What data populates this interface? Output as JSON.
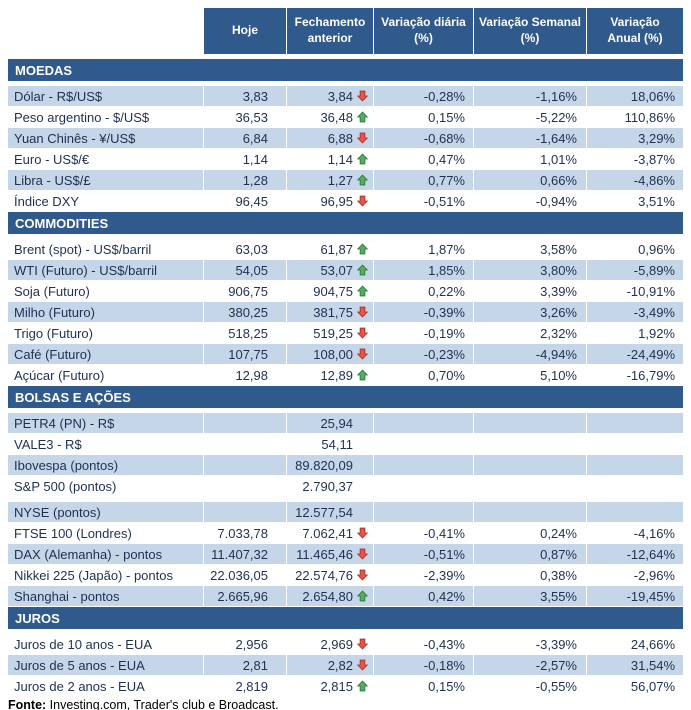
{
  "colors": {
    "header_bg": "#30598c",
    "section_bar_bg": "#30598c",
    "shaded_row_bg": "#c5d6e8",
    "plain_row_bg": "#ffffff",
    "header_text": "#ffffff",
    "body_text": "#1f3050",
    "up_arrow": "#5aab61",
    "down_arrow": "#e2574c"
  },
  "chart_data": {
    "type": "table",
    "columns": [
      "",
      "Hoje",
      "Fechamento anterior",
      "Variação diária (%)",
      "Variação Semanal (%)",
      "Variação Anual (%)"
    ],
    "header_lines": [
      [
        ""
      ],
      [
        "Hoje"
      ],
      [
        "Fechamento",
        "anterior"
      ],
      [
        "Variação diária",
        "(%)"
      ],
      [
        "Variação Semanal",
        "(%)"
      ],
      [
        "Variação",
        "Anual (%)"
      ]
    ],
    "sections": [
      {
        "title": "MOEDAS",
        "rows": [
          {
            "label": "Dólar - R$/US$",
            "hoje": "3,83",
            "fechamento": "3,84",
            "arrow": "down",
            "diaria": "-0,28%",
            "semanal": "-1,16%",
            "anual": "18,06%"
          },
          {
            "label": "Peso argentino - $/US$",
            "hoje": "36,53",
            "fechamento": "36,48",
            "arrow": "up",
            "diaria": "0,15%",
            "semanal": "-5,22%",
            "anual": "110,86%"
          },
          {
            "label": "Yuan Chinês - ¥/US$",
            "hoje": "6,84",
            "fechamento": "6,88",
            "arrow": "down",
            "diaria": "-0,68%",
            "semanal": "-1,64%",
            "anual": "3,29%"
          },
          {
            "label": "Euro - US$/€",
            "hoje": "1,14",
            "fechamento": "1,14",
            "arrow": "up",
            "diaria": "0,47%",
            "semanal": "1,01%",
            "anual": "-3,87%"
          },
          {
            "label": "Libra - US$/£",
            "hoje": "1,28",
            "fechamento": "1,27",
            "arrow": "up",
            "diaria": "0,77%",
            "semanal": "0,66%",
            "anual": "-4,86%"
          },
          {
            "label": "Índice DXY",
            "hoje": "96,45",
            "fechamento": "96,95",
            "arrow": "down",
            "diaria": "-0,51%",
            "semanal": "-0,94%",
            "anual": "3,51%"
          }
        ]
      },
      {
        "title": "COMMODITIES",
        "rows": [
          {
            "label": "Brent (spot) - US$/barril",
            "hoje": "63,03",
            "fechamento": "61,87",
            "arrow": "up",
            "diaria": "1,87%",
            "semanal": "3,58%",
            "anual": "0,96%"
          },
          {
            "label": "WTI (Futuro) - US$/barril",
            "hoje": "54,05",
            "fechamento": "53,07",
            "arrow": "up",
            "diaria": "1,85%",
            "semanal": "3,80%",
            "anual": "-5,89%"
          },
          {
            "label": "Soja (Futuro)",
            "hoje": "906,75",
            "fechamento": "904,75",
            "arrow": "up",
            "diaria": "0,22%",
            "semanal": "3,39%",
            "anual": "-10,91%"
          },
          {
            "label": "Milho (Futuro)",
            "hoje": "380,25",
            "fechamento": "381,75",
            "arrow": "down",
            "diaria": "-0,39%",
            "semanal": "3,26%",
            "anual": "-3,49%"
          },
          {
            "label": "Trigo (Futuro)",
            "hoje": "518,25",
            "fechamento": "519,25",
            "arrow": "down",
            "diaria": "-0,19%",
            "semanal": "2,32%",
            "anual": "1,92%"
          },
          {
            "label": "Café (Futuro)",
            "hoje": "107,75",
            "fechamento": "108,00",
            "arrow": "down",
            "diaria": "-0,23%",
            "semanal": "-4,94%",
            "anual": "-24,49%"
          },
          {
            "label": "Açúcar (Futuro)",
            "hoje": "12,98",
            "fechamento": "12,89",
            "arrow": "up",
            "diaria": "0,70%",
            "semanal": "5,10%",
            "anual": "-16,79%"
          }
        ]
      },
      {
        "title": "BOLSAS E AÇÕES",
        "rows": [
          {
            "label": "PETR4 (PN) - R$",
            "hoje": "",
            "fechamento": "25,94",
            "arrow": null,
            "diaria": "",
            "semanal": "",
            "anual": ""
          },
          {
            "label": "VALE3 - R$",
            "hoje": "",
            "fechamento": "54,11",
            "arrow": null,
            "diaria": "",
            "semanal": "",
            "anual": ""
          },
          {
            "label": "Ibovespa (pontos)",
            "hoje": "",
            "fechamento": "89.820,09",
            "arrow": null,
            "diaria": "",
            "semanal": "",
            "anual": ""
          },
          {
            "label": "S&P 500 (pontos)",
            "hoje": "",
            "fechamento": "2.790,37",
            "arrow": null,
            "diaria": "",
            "semanal": "",
            "anual": ""
          },
          {
            "label": "NYSE (pontos)",
            "hoje": "",
            "fechamento": "12.577,54",
            "arrow": null,
            "diaria": "",
            "semanal": "",
            "anual": ""
          },
          {
            "label": "FTSE 100 (Londres)",
            "hoje": "7.033,78",
            "fechamento": "7.062,41",
            "arrow": "down",
            "diaria": "-0,41%",
            "semanal": "0,24%",
            "anual": "-4,16%"
          },
          {
            "label": "DAX (Alemanha) - pontos",
            "hoje": "11.407,32",
            "fechamento": "11.465,46",
            "arrow": "down",
            "diaria": "-0,51%",
            "semanal": "0,87%",
            "anual": "-12,64%"
          },
          {
            "label": "Nikkei 225 (Japão) - pontos",
            "hoje": "22.036,05",
            "fechamento": "22.574,76",
            "arrow": "down",
            "diaria": "-2,39%",
            "semanal": "0,38%",
            "anual": "-2,96%"
          },
          {
            "label": "Shanghai - pontos",
            "hoje": "2.665,96",
            "fechamento": "2.654,80",
            "arrow": "up",
            "diaria": "0,42%",
            "semanal": "3,55%",
            "anual": "-19,45%"
          }
        ]
      },
      {
        "title": "JUROS",
        "rows": [
          {
            "label": "Juros de 10 anos - EUA",
            "hoje": "2,956",
            "fechamento": "2,969",
            "arrow": "down",
            "diaria": "-0,43%",
            "semanal": "-3,39%",
            "anual": "24,66%"
          },
          {
            "label": "Juros de 5 anos - EUA",
            "hoje": "2,81",
            "fechamento": "2,82",
            "arrow": "down",
            "diaria": "-0,18%",
            "semanal": "-2,57%",
            "anual": "31,54%"
          },
          {
            "label": "Juros de 2 anos - EUA",
            "hoje": "2,819",
            "fechamento": "2,815",
            "arrow": "up",
            "diaria": "0,15%",
            "semanal": "-0,55%",
            "anual": "56,07%"
          }
        ]
      }
    ],
    "footer": {
      "label": "Fonte:",
      "text": " Investing.com, Trader's club e Broadcast."
    }
  }
}
